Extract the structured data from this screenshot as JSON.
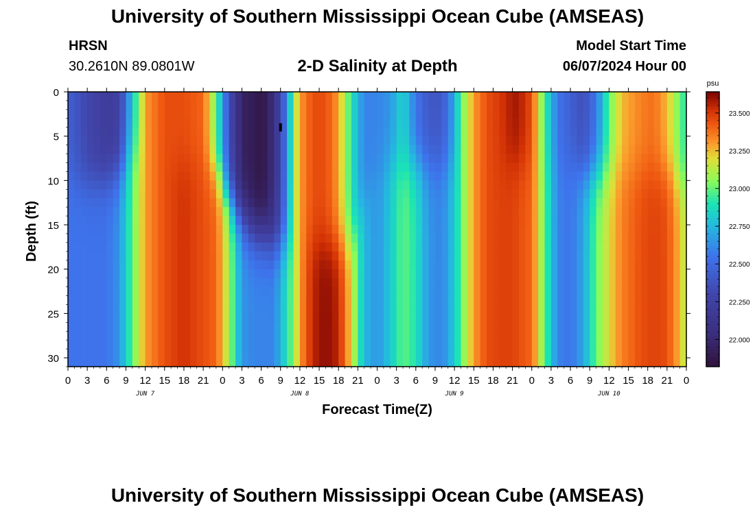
{
  "header": {
    "title": "University of Southern Mississippi Ocean Cube (AMSEAS)",
    "station": "HRSN",
    "coords": "30.2610N  89.0801W",
    "plot_title": "2-D Salinity at Depth",
    "start_label": "Model Start Time",
    "start_value": "06/07/2024 Hour 00"
  },
  "footer": {
    "title": "University of Southern Mississippi Ocean Cube (AMSEAS)"
  },
  "chart_data": {
    "type": "heatmap",
    "title": "2-D Salinity at Depth",
    "xlabel": "Forecast Time(Z)",
    "ylabel": "Depth (ft)",
    "x_tick_labels": [
      "0",
      "3",
      "6",
      "9",
      "12",
      "15",
      "18",
      "21",
      "0",
      "3",
      "6",
      "9",
      "12",
      "15",
      "18",
      "21",
      "0",
      "3",
      "6",
      "9",
      "12",
      "15",
      "18",
      "21",
      "0",
      "3",
      "6",
      "9",
      "12",
      "15",
      "18",
      "21",
      "0"
    ],
    "x_range_hours": [
      0,
      96
    ],
    "day_labels": [
      {
        "text": "JUN 7",
        "hour": 12
      },
      {
        "text": "JUN 8",
        "hour": 36
      },
      {
        "text": "JUN 9",
        "hour": 60
      },
      {
        "text": "JUN 10",
        "hour": 84
      }
    ],
    "y_ticks": [
      0,
      5,
      10,
      15,
      20,
      25,
      30
    ],
    "y_range": [
      0,
      31
    ],
    "y_inverted": true,
    "colorbar": {
      "unit": "psu",
      "ticks": [
        "23.500",
        "23.250",
        "23.000",
        "22.750",
        "22.500",
        "22.250",
        "22.000"
      ],
      "tick_values": [
        23.5,
        23.25,
        23.0,
        22.75,
        22.5,
        22.25,
        22.0
      ],
      "range": [
        21.82,
        23.64
      ]
    },
    "colormap": [
      {
        "v": 21.82,
        "color": "#30123b"
      },
      {
        "v": 22.05,
        "color": "#3b2f80"
      },
      {
        "v": 22.3,
        "color": "#4145ab"
      },
      {
        "v": 22.55,
        "color": "#3e73ec"
      },
      {
        "v": 22.75,
        "color": "#25b8e0"
      },
      {
        "v": 22.9,
        "color": "#1ae4b6"
      },
      {
        "v": 23.05,
        "color": "#8afb5a"
      },
      {
        "v": 23.2,
        "color": "#e1dd37"
      },
      {
        "v": 23.3,
        "color": "#fb9a2c"
      },
      {
        "v": 23.42,
        "color": "#f05b12"
      },
      {
        "v": 23.52,
        "color": "#d23105"
      },
      {
        "v": 23.64,
        "color": "#7a0403"
      }
    ],
    "grid": {
      "time_step_hours": 1,
      "depth_step_ft": 1,
      "salinity_columns": [
        {
          "hour": 0,
          "top": 22.45,
          "bottom": 22.55,
          "thermo": 9.5
        },
        {
          "hour": 3,
          "top": 22.3,
          "bottom": 22.55,
          "thermo": 10.5
        },
        {
          "hour": 6,
          "top": 22.2,
          "bottom": 22.55,
          "thermo": 10
        },
        {
          "hour": 8,
          "top": 22.25,
          "bottom": 22.65,
          "thermo": 9
        },
        {
          "hour": 10,
          "top": 22.8,
          "bottom": 23.0,
          "thermo": 7
        },
        {
          "hour": 12,
          "top": 23.3,
          "bottom": 23.3,
          "thermo": 7
        },
        {
          "hour": 15,
          "top": 23.45,
          "bottom": 23.45,
          "thermo": 8
        },
        {
          "hour": 18,
          "top": 23.45,
          "bottom": 23.52,
          "thermo": 8
        },
        {
          "hour": 21,
          "top": 23.4,
          "bottom": 23.45,
          "thermo": 8
        },
        {
          "hour": 23,
          "top": 23.0,
          "bottom": 23.4,
          "thermo": 9
        },
        {
          "hour": 25,
          "top": 22.35,
          "bottom": 23.1,
          "thermo": 12
        },
        {
          "hour": 27,
          "top": 21.95,
          "bottom": 22.65,
          "thermo": 14
        },
        {
          "hour": 29,
          "top": 21.9,
          "bottom": 22.6,
          "thermo": 16
        },
        {
          "hour": 30,
          "top": 21.85,
          "bottom": 22.6,
          "thermo": 16
        },
        {
          "hour": 32,
          "top": 22.05,
          "bottom": 22.6,
          "thermo": 17
        },
        {
          "hour": 34,
          "top": 22.6,
          "bottom": 22.9,
          "thermo": 17
        },
        {
          "hour": 35,
          "top": 23.05,
          "bottom": 23.05,
          "thermo": 17
        },
        {
          "hour": 36,
          "top": 23.3,
          "bottom": 23.3,
          "thermo": 17
        },
        {
          "hour": 38,
          "top": 23.45,
          "bottom": 23.55,
          "thermo": 17
        },
        {
          "hour": 40,
          "top": 23.45,
          "bottom": 23.62,
          "thermo": 17
        },
        {
          "hour": 42,
          "top": 23.3,
          "bottom": 23.55,
          "thermo": 17
        },
        {
          "hour": 44,
          "top": 22.9,
          "bottom": 23.2,
          "thermo": 17
        },
        {
          "hour": 46,
          "top": 22.6,
          "bottom": 22.75,
          "thermo": 12
        },
        {
          "hour": 48,
          "top": 22.6,
          "bottom": 22.65,
          "thermo": 9
        },
        {
          "hour": 50,
          "top": 22.65,
          "bottom": 22.8,
          "thermo": 8
        },
        {
          "hour": 52,
          "top": 22.85,
          "bottom": 23.0,
          "thermo": 8
        },
        {
          "hour": 54,
          "top": 22.55,
          "bottom": 22.9,
          "thermo": 8
        },
        {
          "hour": 56,
          "top": 22.4,
          "bottom": 22.65,
          "thermo": 8
        },
        {
          "hour": 58,
          "top": 22.4,
          "bottom": 22.6,
          "thermo": 8
        },
        {
          "hour": 60,
          "top": 22.7,
          "bottom": 22.8,
          "thermo": 8
        },
        {
          "hour": 61,
          "top": 23.0,
          "bottom": 23.0,
          "thermo": 8
        },
        {
          "hour": 63,
          "top": 23.3,
          "bottom": 23.3,
          "thermo": 8
        },
        {
          "hour": 65,
          "top": 23.45,
          "bottom": 23.45,
          "thermo": 8
        },
        {
          "hour": 67,
          "top": 23.5,
          "bottom": 23.48,
          "thermo": 8
        },
        {
          "hour": 69,
          "top": 23.58,
          "bottom": 23.48,
          "thermo": 8
        },
        {
          "hour": 70,
          "top": 23.58,
          "bottom": 23.45,
          "thermo": 8
        },
        {
          "hour": 72,
          "top": 23.45,
          "bottom": 23.4,
          "thermo": 8
        },
        {
          "hour": 74,
          "top": 22.95,
          "bottom": 23.0,
          "thermo": 8
        },
        {
          "hour": 76,
          "top": 22.55,
          "bottom": 22.6,
          "thermo": 8
        },
        {
          "hour": 78,
          "top": 22.45,
          "bottom": 22.55,
          "thermo": 8
        },
        {
          "hour": 80,
          "top": 22.35,
          "bottom": 22.7,
          "thermo": 9
        },
        {
          "hour": 82,
          "top": 22.55,
          "bottom": 23.0,
          "thermo": 9
        },
        {
          "hour": 84,
          "top": 23.0,
          "bottom": 23.2,
          "thermo": 9
        },
        {
          "hour": 86,
          "top": 23.25,
          "bottom": 23.35,
          "thermo": 9
        },
        {
          "hour": 89,
          "top": 23.35,
          "bottom": 23.45,
          "thermo": 9
        },
        {
          "hour": 91,
          "top": 23.38,
          "bottom": 23.48,
          "thermo": 9
        },
        {
          "hour": 93,
          "top": 23.25,
          "bottom": 23.45,
          "thermo": 9
        },
        {
          "hour": 95,
          "top": 23.0,
          "bottom": 23.25,
          "thermo": 10
        },
        {
          "hour": 96,
          "top": 22.9,
          "bottom": 23.1,
          "thermo": 10
        }
      ]
    },
    "annotation": {
      "hour": 33,
      "depth": 4
    }
  }
}
